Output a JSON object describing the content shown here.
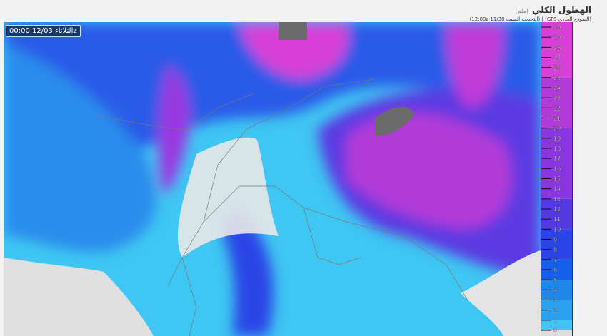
{
  "header": {
    "title": "الهطول الكلي",
    "unit": "(ملم)",
    "subtitle": "(النموذج العددي GFS) | (التحديث السبت 11/30 12:00z)"
  },
  "map": {
    "valid_time": "الثلاثاء 12/03 00:00z"
  },
  "legend": {
    "min": 0,
    "max": 30,
    "ticks": [
      "0",
      "1",
      "2",
      "3",
      "4",
      "5",
      "6",
      "7",
      "8",
      "9",
      "10",
      "11",
      "12",
      "13",
      "14",
      "15",
      "16",
      "17",
      "18",
      "19",
      "20",
      "21",
      "22",
      "23",
      "24",
      "25",
      "26",
      "27",
      "28",
      "29",
      "30"
    ],
    "bands": [
      {
        "from": 0,
        "to": 1,
        "color": "#3fc6f2"
      },
      {
        "from": 1,
        "to": 3,
        "color": "#2aa0ee"
      },
      {
        "from": 3,
        "to": 5,
        "color": "#1f86ea"
      },
      {
        "from": 5,
        "to": 7,
        "color": "#1560ea"
      },
      {
        "from": 7,
        "to": 10,
        "color": "#2a44e6"
      },
      {
        "from": 10,
        "to": 13,
        "color": "#5438e0"
      },
      {
        "from": 13,
        "to": 20,
        "color": "#8a36e0"
      },
      {
        "from": 20,
        "to": 25,
        "color": "#b23ad8"
      },
      {
        "from": 25,
        "to": 30,
        "color": "#d840d8"
      }
    ],
    "no_data_color": "#6b6b6b"
  }
}
